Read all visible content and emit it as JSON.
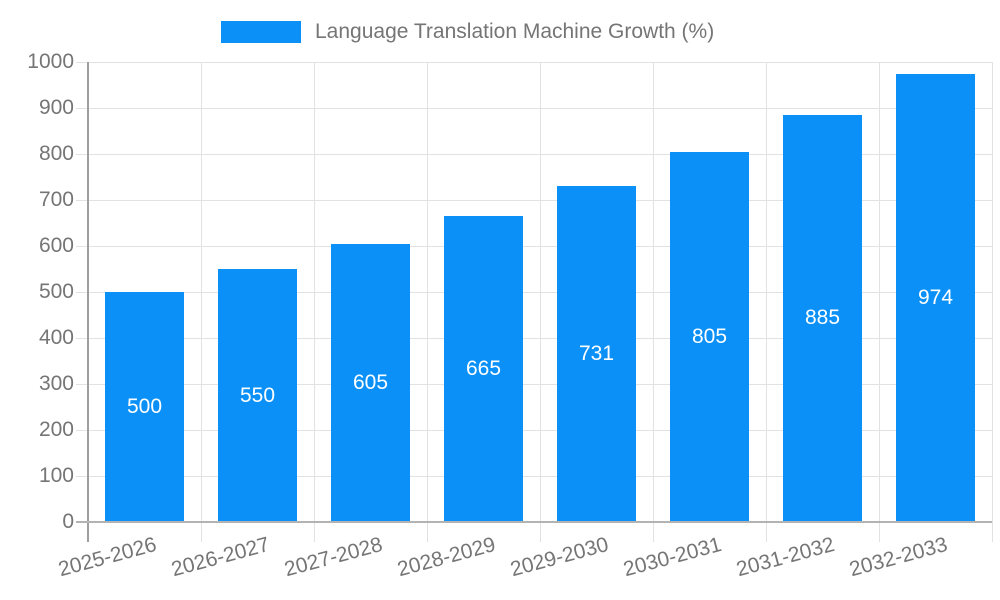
{
  "chart_data": {
    "type": "bar",
    "title": "Language Translation Machine Growth (%)",
    "categories": [
      "2025-2026",
      "2026-2027",
      "2027-2028",
      "2028-2029",
      "2029-2030",
      "2030-2031",
      "2031-2032",
      "2032-2033"
    ],
    "values": [
      500,
      550,
      605,
      665,
      731,
      805,
      885,
      974
    ],
    "value_labels_shown": true,
    "xlabel": "",
    "ylabel": "",
    "ylim": [
      0,
      1000
    ],
    "ytick_step": 100,
    "yticks": [
      0,
      100,
      200,
      300,
      400,
      500,
      600,
      700,
      800,
      900,
      1000
    ],
    "grid": true,
    "legend_position": "top-center",
    "x_tick_rotation_deg": -15
  },
  "colors": {
    "bar": "#0b90f8",
    "bar-label": "#ffffff",
    "grid": "#e2e2e2",
    "axis": "#9e9e9e",
    "baseline": "#b3b3b3",
    "text": "#757575",
    "bg": "#ffffff"
  }
}
